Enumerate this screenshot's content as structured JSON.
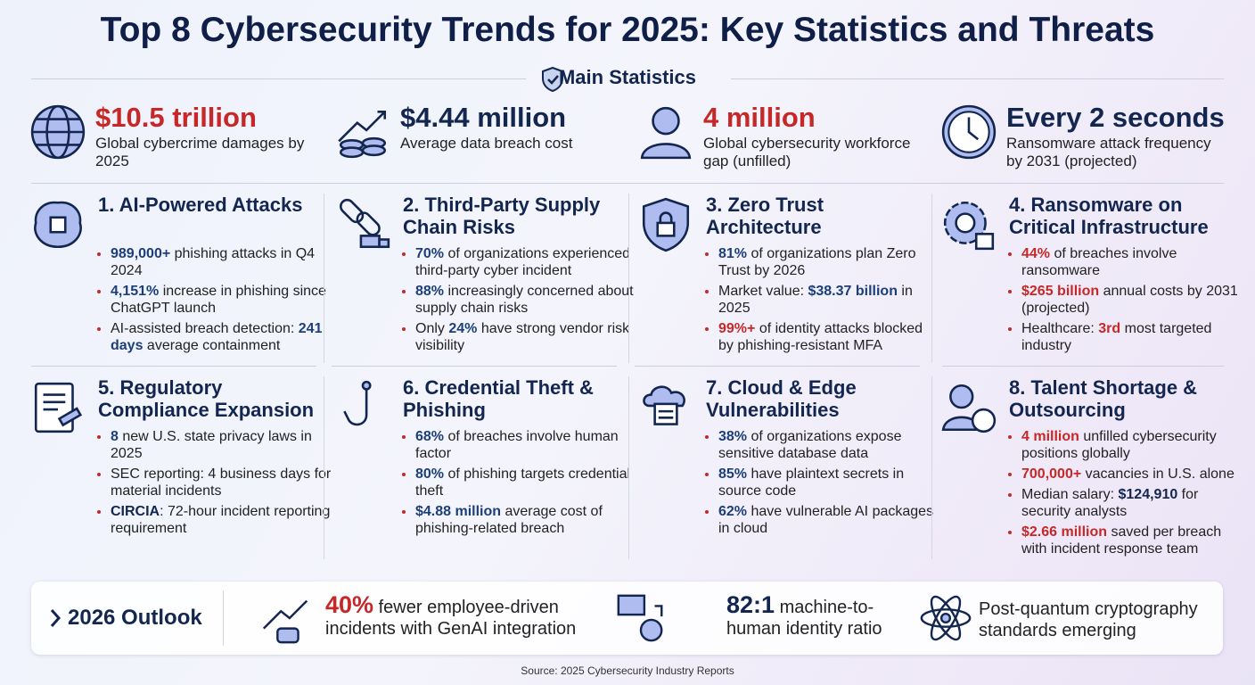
{
  "title": "Top 8 Cybersecurity Trends for 2025: Key Statistics and Threats",
  "main_statistics": {
    "heading": "Main Statistics",
    "items": [
      {
        "value": "$10.5 trillion",
        "label": "Global cybercrime damages by 2025",
        "color": "#c62828"
      },
      {
        "value": "$4.44 million",
        "label": "Average data breach cost",
        "color": "#13264f"
      },
      {
        "value": "4 million",
        "label": "Global cybersecurity workforce gap (unfilled)",
        "color": "#c62828"
      },
      {
        "value": "Every 2 seconds",
        "label": "Ransomware attack frequency by 2031 (projected)",
        "color": "#13264f"
      }
    ]
  },
  "trends": [
    {
      "title": "1. AI-Powered Attacks",
      "bullets": [
        [
          {
            "text": "989,000+",
            "color": "#1c3f7a"
          },
          {
            "text": " phishing attacks in Q4 2024"
          }
        ],
        [
          {
            "text": "4,151%",
            "color": "#1c3f7a"
          },
          {
            "text": " increase in phishing since ChatGPT launch"
          }
        ],
        [
          {
            "text": "AI-assisted breach detection: "
          },
          {
            "text": "241 days",
            "color": "#1c3f7a"
          },
          {
            "text": " average containment"
          }
        ]
      ]
    },
    {
      "title": "2. Third-Party Supply Chain Risks",
      "bullets": [
        [
          {
            "text": "70%",
            "color": "#1c3f7a"
          },
          {
            "text": " of organizations experienced third-party cyber incident"
          }
        ],
        [
          {
            "text": "88%",
            "color": "#1c3f7a"
          },
          {
            "text": " increasingly concerned about supply chain risks"
          }
        ],
        [
          {
            "text": "Only "
          },
          {
            "text": "24%",
            "color": "#1c3f7a"
          },
          {
            "text": " have strong vendor risk visibility"
          }
        ]
      ]
    },
    {
      "title": "3. Zero Trust Architecture",
      "bullets": [
        [
          {
            "text": "81%",
            "color": "#1c3f7a"
          },
          {
            "text": " of organizations plan Zero Trust by 2026"
          }
        ],
        [
          {
            "text": "Market value: "
          },
          {
            "text": "$38.37 billion",
            "color": "#1c3f7a"
          },
          {
            "text": " in 2025"
          }
        ],
        [
          {
            "text": "99%+",
            "color": "#c62828"
          },
          {
            "text": " of identity attacks blocked by phishing-resistant MFA"
          }
        ]
      ]
    },
    {
      "title": "4. Ransomware on Critical Infrastructure",
      "bullets": [
        [
          {
            "text": "44%",
            "color": "#c62828"
          },
          {
            "text": " of breaches involve ransomware"
          }
        ],
        [
          {
            "text": "$265 billion",
            "color": "#c62828"
          },
          {
            "text": " annual costs by 2031 (projected)"
          }
        ],
        [
          {
            "text": "Healthcare: "
          },
          {
            "text": "3rd",
            "color": "#c62828"
          },
          {
            "text": " most targeted industry"
          }
        ]
      ]
    },
    {
      "title": "5. Regulatory Compliance Expansion",
      "bullets": [
        [
          {
            "text": "8",
            "color": "#1c3f7a"
          },
          {
            "text": " new U.S. state privacy laws in 2025"
          }
        ],
        [
          {
            "text": "SEC reporting: 4 business days for material incidents"
          }
        ],
        [
          {
            "text": "CIRCIA",
            "color": "#13264f"
          },
          {
            "text": ": 72-hour incident reporting requirement"
          }
        ]
      ]
    },
    {
      "title": "6. Credential Theft & Phishing",
      "bullets": [
        [
          {
            "text": "68%",
            "color": "#1c3f7a"
          },
          {
            "text": " of breaches involve human factor"
          }
        ],
        [
          {
            "text": "80%",
            "color": "#1c3f7a"
          },
          {
            "text": " of phishing targets credential theft"
          }
        ],
        [
          {
            "text": "$4.88 million",
            "color": "#1c3f7a"
          },
          {
            "text": " average cost of phishing-related breach"
          }
        ]
      ]
    },
    {
      "title": "7. Cloud & Edge Vulnerabilities",
      "bullets": [
        [
          {
            "text": "38%",
            "color": "#1c3f7a"
          },
          {
            "text": " of organizations expose sensitive database data"
          }
        ],
        [
          {
            "text": "85%",
            "color": "#1c3f7a"
          },
          {
            "text": " have plaintext secrets in source code"
          }
        ],
        [
          {
            "text": "62%",
            "color": "#1c3f7a"
          },
          {
            "text": " have vulnerable AI packages in cloud"
          }
        ]
      ]
    },
    {
      "title": "8. Talent Shortage & Outsourcing",
      "bullets": [
        [
          {
            "text": "4 million",
            "color": "#c62828"
          },
          {
            "text": " unfilled cybersecurity positions globally"
          }
        ],
        [
          {
            "text": "700,000+",
            "color": "#c62828"
          },
          {
            "text": " vacancies in U.S. alone"
          }
        ],
        [
          {
            "text": "Median salary: "
          },
          {
            "text": "$124,910",
            "color": "#13264f"
          },
          {
            "text": " for security analysts"
          }
        ],
        [
          {
            "text": "$2.66 million",
            "color": "#c62828"
          },
          {
            "text": " saved per breach with incident response team"
          }
        ]
      ]
    }
  ],
  "outlook": {
    "label": "2026 Outlook",
    "items": [
      [
        {
          "text": "40%",
          "color": "#c62828",
          "big": true
        },
        {
          "text": " fewer employee-driven incidents with GenAI integration"
        }
      ],
      [
        {
          "text": "82:1",
          "color": "#13264f",
          "big": true
        },
        {
          "text": " machine-to-human identity ratio"
        }
      ],
      [
        {
          "text": "Post-quantum cryptography standards emerging"
        }
      ]
    ]
  },
  "source": "Source: 2025 Cybersecurity Industry Reports"
}
